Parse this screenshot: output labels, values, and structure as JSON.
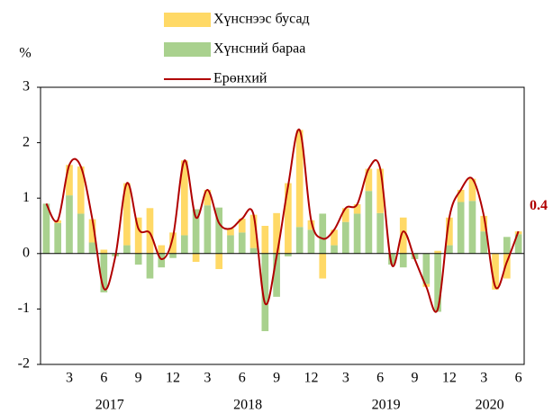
{
  "chart_data": {
    "type": "bar_line",
    "y_unit": "%",
    "categories": [
      null,
      null,
      "3",
      null,
      null,
      "6",
      null,
      null,
      "9",
      null,
      null,
      "12",
      null,
      null,
      "3",
      null,
      null,
      "6",
      null,
      null,
      "9",
      null,
      null,
      "12",
      null,
      null,
      "3",
      null,
      null,
      "6",
      null,
      null,
      "9",
      null,
      null,
      "12",
      null,
      null,
      "3",
      null,
      null,
      "6"
    ],
    "x_groups": [
      "2017",
      "2018",
      "2019",
      "2020"
    ],
    "series": [
      {
        "name": "Хүнснээс бусад",
        "type": "bar",
        "color": "#FFD966",
        "values": [
          0,
          0.05,
          0.55,
          0.85,
          0.42,
          0.07,
          0,
          1.12,
          0.65,
          0.82,
          0.15,
          0.38,
          1.35,
          -0.15,
          0.28,
          -0.28,
          0.12,
          0.25,
          0.6,
          0.5,
          0.73,
          1.27,
          1.75,
          0.17,
          -0.45,
          0.28,
          0.25,
          0.17,
          0.4,
          0.8,
          0,
          0.65,
          0,
          -0.05,
          0.05,
          0.5,
          0.22,
          0.4,
          0.28,
          -0.65,
          -0.45,
          0.05
        ]
      },
      {
        "name": "Хүнсний бараа",
        "type": "bar",
        "color": "#A9D18E",
        "values": [
          0.9,
          0.55,
          1.05,
          0.72,
          0.2,
          -0.7,
          -0.05,
          0.15,
          -0.2,
          -0.45,
          -0.25,
          -0.08,
          0.33,
          0.8,
          0.87,
          0.83,
          0.33,
          0.38,
          0.1,
          -1.4,
          -0.78,
          -0.05,
          0.48,
          0.43,
          0.72,
          0.15,
          0.57,
          0.72,
          1.13,
          0.73,
          -0.2,
          -0.25,
          -0.1,
          -0.55,
          -1.05,
          0.15,
          0.93,
          0.95,
          0.4,
          0,
          0.3,
          0.35
        ]
      },
      {
        "name": "Ерөнхий",
        "type": "line",
        "color": "#B00000",
        "values": [
          0.9,
          0.6,
          1.6,
          1.57,
          0.62,
          -0.63,
          -0.05,
          1.27,
          0.45,
          0.37,
          -0.1,
          0.3,
          1.68,
          0.65,
          1.15,
          0.55,
          0.45,
          0.63,
          0.7,
          -0.9,
          -0.05,
          1.22,
          2.23,
          0.6,
          0.27,
          0.43,
          0.82,
          0.89,
          1.53,
          1.53,
          -0.2,
          0.4,
          -0.1,
          -0.6,
          -1.0,
          0.65,
          1.15,
          1.35,
          0.68,
          -0.6,
          -0.15,
          0.4
        ]
      }
    ],
    "ylim": [
      -2,
      3
    ],
    "yticks": [
      -2,
      -1,
      0,
      1,
      2,
      3
    ],
    "grid": false,
    "legend": "top"
  }
}
